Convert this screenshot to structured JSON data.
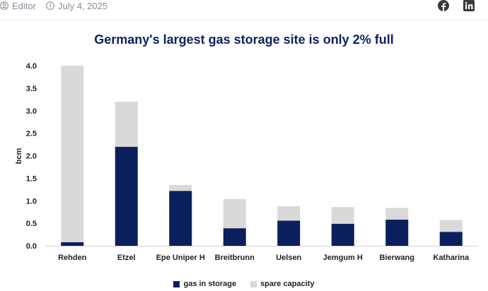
{
  "meta": {
    "author": "Editor",
    "date": "July 4, 2025",
    "author_icon": "user-icon",
    "date_icon": "clock-icon"
  },
  "social": {
    "icons": [
      "facebook-icon",
      "linkedin-icon"
    ]
  },
  "colors": {
    "stored": "#0b1f5c",
    "spare": "#d9d9d9",
    "title": "#0f2360"
  },
  "chart_data": {
    "type": "bar",
    "stacked": true,
    "title": "Germany's largest gas storage site is only 2% full",
    "xlabel": "",
    "ylabel": "bcm",
    "ylim": [
      0,
      4.0
    ],
    "yticks": [
      "0.0",
      "0.5",
      "1.0",
      "1.5",
      "2.0",
      "2.5",
      "3.0",
      "3.5",
      "4.0"
    ],
    "ytick_values": [
      0,
      0.5,
      1.0,
      1.5,
      2.0,
      2.5,
      3.0,
      3.5,
      4.0
    ],
    "grid": false,
    "legend_position": "bottom",
    "categories": [
      "Rehden",
      "Etzel",
      "Epe Uniper H",
      "Breitbrunn",
      "Uelsen",
      "Jemgum H",
      "Bierwang",
      "Katharina"
    ],
    "series": [
      {
        "name": "gas in storage",
        "values": [
          0.08,
          2.2,
          1.22,
          0.39,
          0.56,
          0.49,
          0.58,
          0.31
        ]
      },
      {
        "name": "spare capacity",
        "values": [
          3.92,
          1.0,
          0.13,
          0.65,
          0.32,
          0.37,
          0.26,
          0.26
        ]
      }
    ]
  }
}
